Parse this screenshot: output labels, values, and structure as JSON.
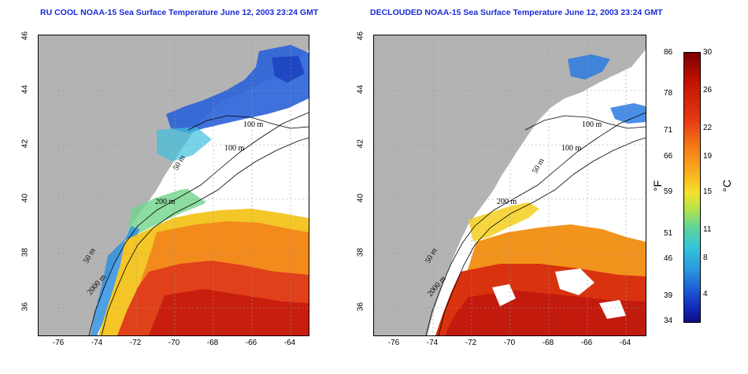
{
  "titles": {
    "left": "RU COOL NOAA-15 Sea Surface Temperature June 12, 2003 23:24 GMT",
    "right": "DECLOUDED NOAA-15 Sea Surface Temperature June 12, 2003 23:24 GMT"
  },
  "map": {
    "lon_range": [
      -77,
      -63
    ],
    "lat_range": [
      35,
      46
    ],
    "lon_ticks": [
      "-76",
      "-74",
      "-72",
      "-70",
      "-68",
      "-66",
      "-64"
    ],
    "lat_ticks": [
      "36",
      "38",
      "40",
      "42",
      "44",
      "46"
    ],
    "contour_labels_left": [
      "100 m",
      "100 m",
      "50 m",
      "200 m",
      "50 m",
      "2000 m"
    ],
    "contour_labels_right": [
      "100 m",
      "100 m",
      "50 m",
      "200 m",
      "50 m",
      "2000 m"
    ]
  },
  "colorbar": {
    "fahrenheit_labels": [
      "86",
      "78",
      "71",
      "66",
      "59",
      "51",
      "46",
      "39",
      "34"
    ],
    "celsius_labels": [
      "30",
      "26",
      "22",
      "19",
      "15",
      "11",
      "8",
      "4"
    ],
    "fahrenheit_unit": "°F",
    "celsius_unit": "°C",
    "colors_top_to_bottom": [
      "#7a0000",
      "#c01000",
      "#e53a12",
      "#f57a18",
      "#f9b21e",
      "#f6e228",
      "#b6e34a",
      "#5fd49a",
      "#34c6d6",
      "#2a9ce0",
      "#1e5ad6",
      "#1327b6",
      "#0a0e80"
    ]
  }
}
